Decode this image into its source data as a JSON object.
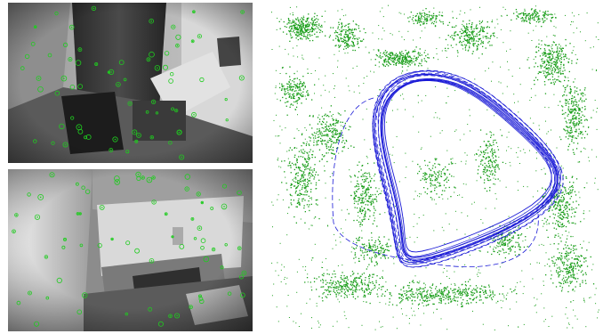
{
  "colors": {
    "feature": "#1fcc1f",
    "map_point": "#1a9e1a",
    "trajectory": "#1a1ad6",
    "background": "#ffffff"
  },
  "panels": {
    "top_frame": {
      "icon": "camera-frame-icon"
    },
    "bottom_frame": {
      "icon": "camera-frame-icon"
    },
    "map": {
      "icon": "point-cloud-map-icon"
    }
  }
}
